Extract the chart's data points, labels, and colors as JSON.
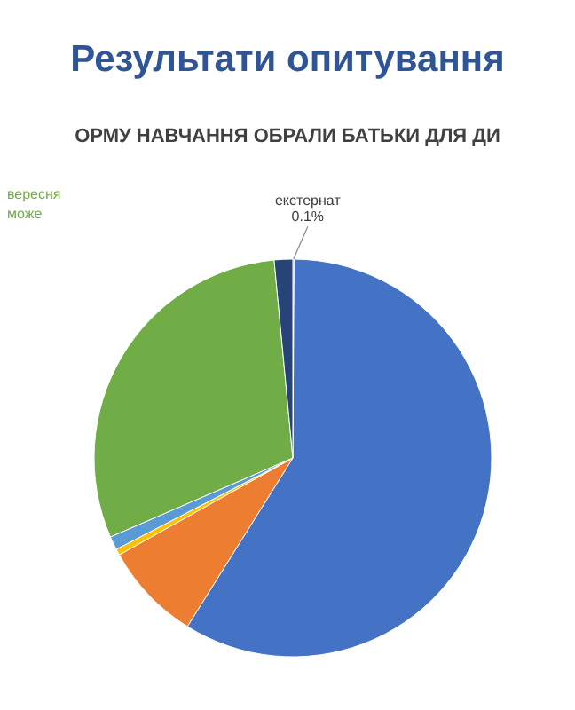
{
  "chart_data": {
    "type": "pie",
    "title": "Результати опитування",
    "subtitle": "ОРМУ НАВЧАННЯ ОБРАЛИ БАТЬКИ ДЛЯ ДИ",
    "categories": [
      "екстернат",
      null,
      null,
      null,
      null,
      null,
      null
    ],
    "values": [
      0.1,
      58.8,
      8,
      0.5,
      1.1,
      30,
      1.5
    ],
    "value_labels": [
      "0.1%",
      null,
      null,
      null,
      null,
      null,
      null
    ],
    "colors": [
      "#9e480e",
      "#4472c4",
      "#ed7d31",
      "#ffc000",
      "#5b9bd5",
      "#70ad47",
      "#264478"
    ],
    "annotations": [
      "вересня",
      "може"
    ]
  }
}
